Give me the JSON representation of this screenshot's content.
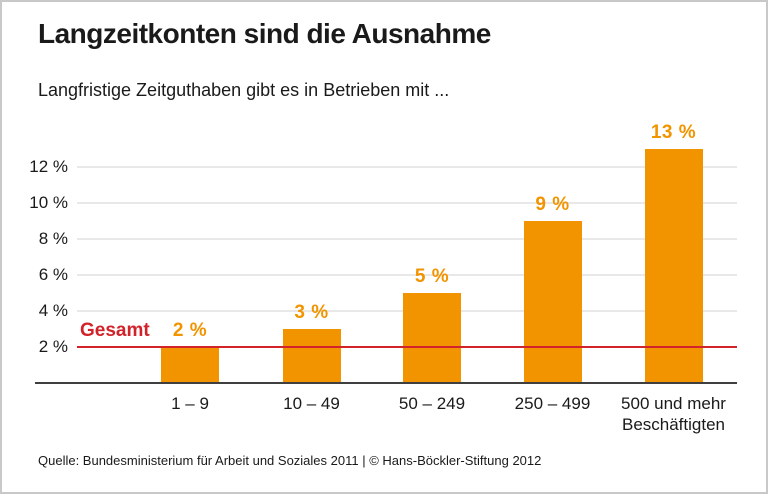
{
  "header": {
    "title": "Langzeitkonten sind die Ausnahme",
    "subtitle": "Langfristige Zeitguthaben gibt es in Betrieben mit ..."
  },
  "chart_data": {
    "type": "bar",
    "title": "Langzeitkonten sind die Ausnahme",
    "subtitle": "Langfristige Zeitguthaben gibt es in Betrieben mit ...",
    "categories": [
      "1 – 9",
      "10 – 49",
      "50 – 249",
      "250 – 499",
      "500 und mehr\nBeschäftigten"
    ],
    "values": [
      2,
      3,
      5,
      9,
      13
    ],
    "value_labels": [
      "2 %",
      "3 %",
      "5 %",
      "9 %",
      "13 %"
    ],
    "xlabel": "",
    "ylabel": "",
    "ylim": [
      0,
      14
    ],
    "y_ticks": [
      2,
      4,
      6,
      8,
      10,
      12
    ],
    "y_tick_labels": [
      "2 %",
      "4 %",
      "6 %",
      "8 %",
      "10 %",
      "12 %"
    ],
    "grid": true,
    "legend": null,
    "reference_line": {
      "label": "Gesamt",
      "value": 2
    }
  },
  "footer": {
    "source": "Quelle: Bundesministerium für Arbeit und Soziales 2011 | © Hans-Böckler-Stiftung 2012"
  },
  "colors": {
    "bar": "#f29400",
    "value_label": "#f29400",
    "reference": "#d2232a",
    "text": "#1a1a1a",
    "gridline": "#e8e8e8",
    "axis": "#3f3f3f",
    "border": "#c8c8c8",
    "background": "#ffffff"
  }
}
